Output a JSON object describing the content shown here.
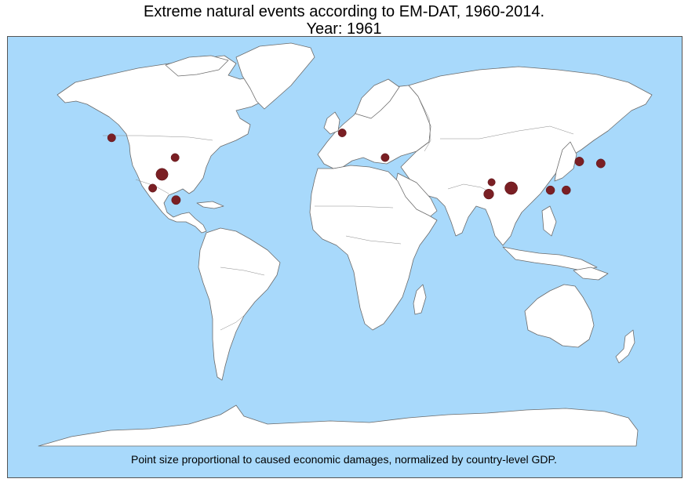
{
  "header": {
    "title_line1": "Extreme natural events according to EM-DAT, 1960-2014.",
    "title_line2": "Year: 1961"
  },
  "map": {
    "ocean_color": "#a8d9fb",
    "land_color": "#ffffff",
    "event_color": "#7a1f24",
    "caption": "Point size proportional to caused economic damages, normalized by country-level GDP.",
    "events": [
      {
        "region": "Pacific Northwest, USA",
        "lon": -123,
        "lat": 48.5,
        "magnitude": 1.0
      },
      {
        "region": "Central USA",
        "lon": -89,
        "lat": 38.5,
        "magnitude": 1.0
      },
      {
        "region": "Texas, USA",
        "lon": -96,
        "lat": 30,
        "magnitude": 2.2
      },
      {
        "region": "Northern Mexico",
        "lon": -101,
        "lat": 23,
        "magnitude": 1.0
      },
      {
        "region": "Belize / Central America",
        "lon": -88.5,
        "lat": 17,
        "magnitude": 1.2
      },
      {
        "region": "Western Europe",
        "lon": 0.5,
        "lat": 51,
        "magnitude": 1.0
      },
      {
        "region": "Greece",
        "lon": 23.5,
        "lat": 38.5,
        "magnitude": 1.0
      },
      {
        "region": "Northern India",
        "lon": 80.5,
        "lat": 26,
        "magnitude": 0.8
      },
      {
        "region": "Central India",
        "lon": 79,
        "lat": 20,
        "magnitude": 1.5
      },
      {
        "region": "Bangladesh",
        "lon": 91,
        "lat": 23,
        "magnitude": 2.4
      },
      {
        "region": "Southern China",
        "lon": 112,
        "lat": 22,
        "magnitude": 1.1
      },
      {
        "region": "Taiwan",
        "lon": 120.5,
        "lat": 22,
        "magnitude": 1.1
      },
      {
        "region": "Korea",
        "lon": 127.5,
        "lat": 36.5,
        "magnitude": 1.2
      },
      {
        "region": "Japan",
        "lon": 139,
        "lat": 35.5,
        "magnitude": 1.2
      }
    ]
  }
}
